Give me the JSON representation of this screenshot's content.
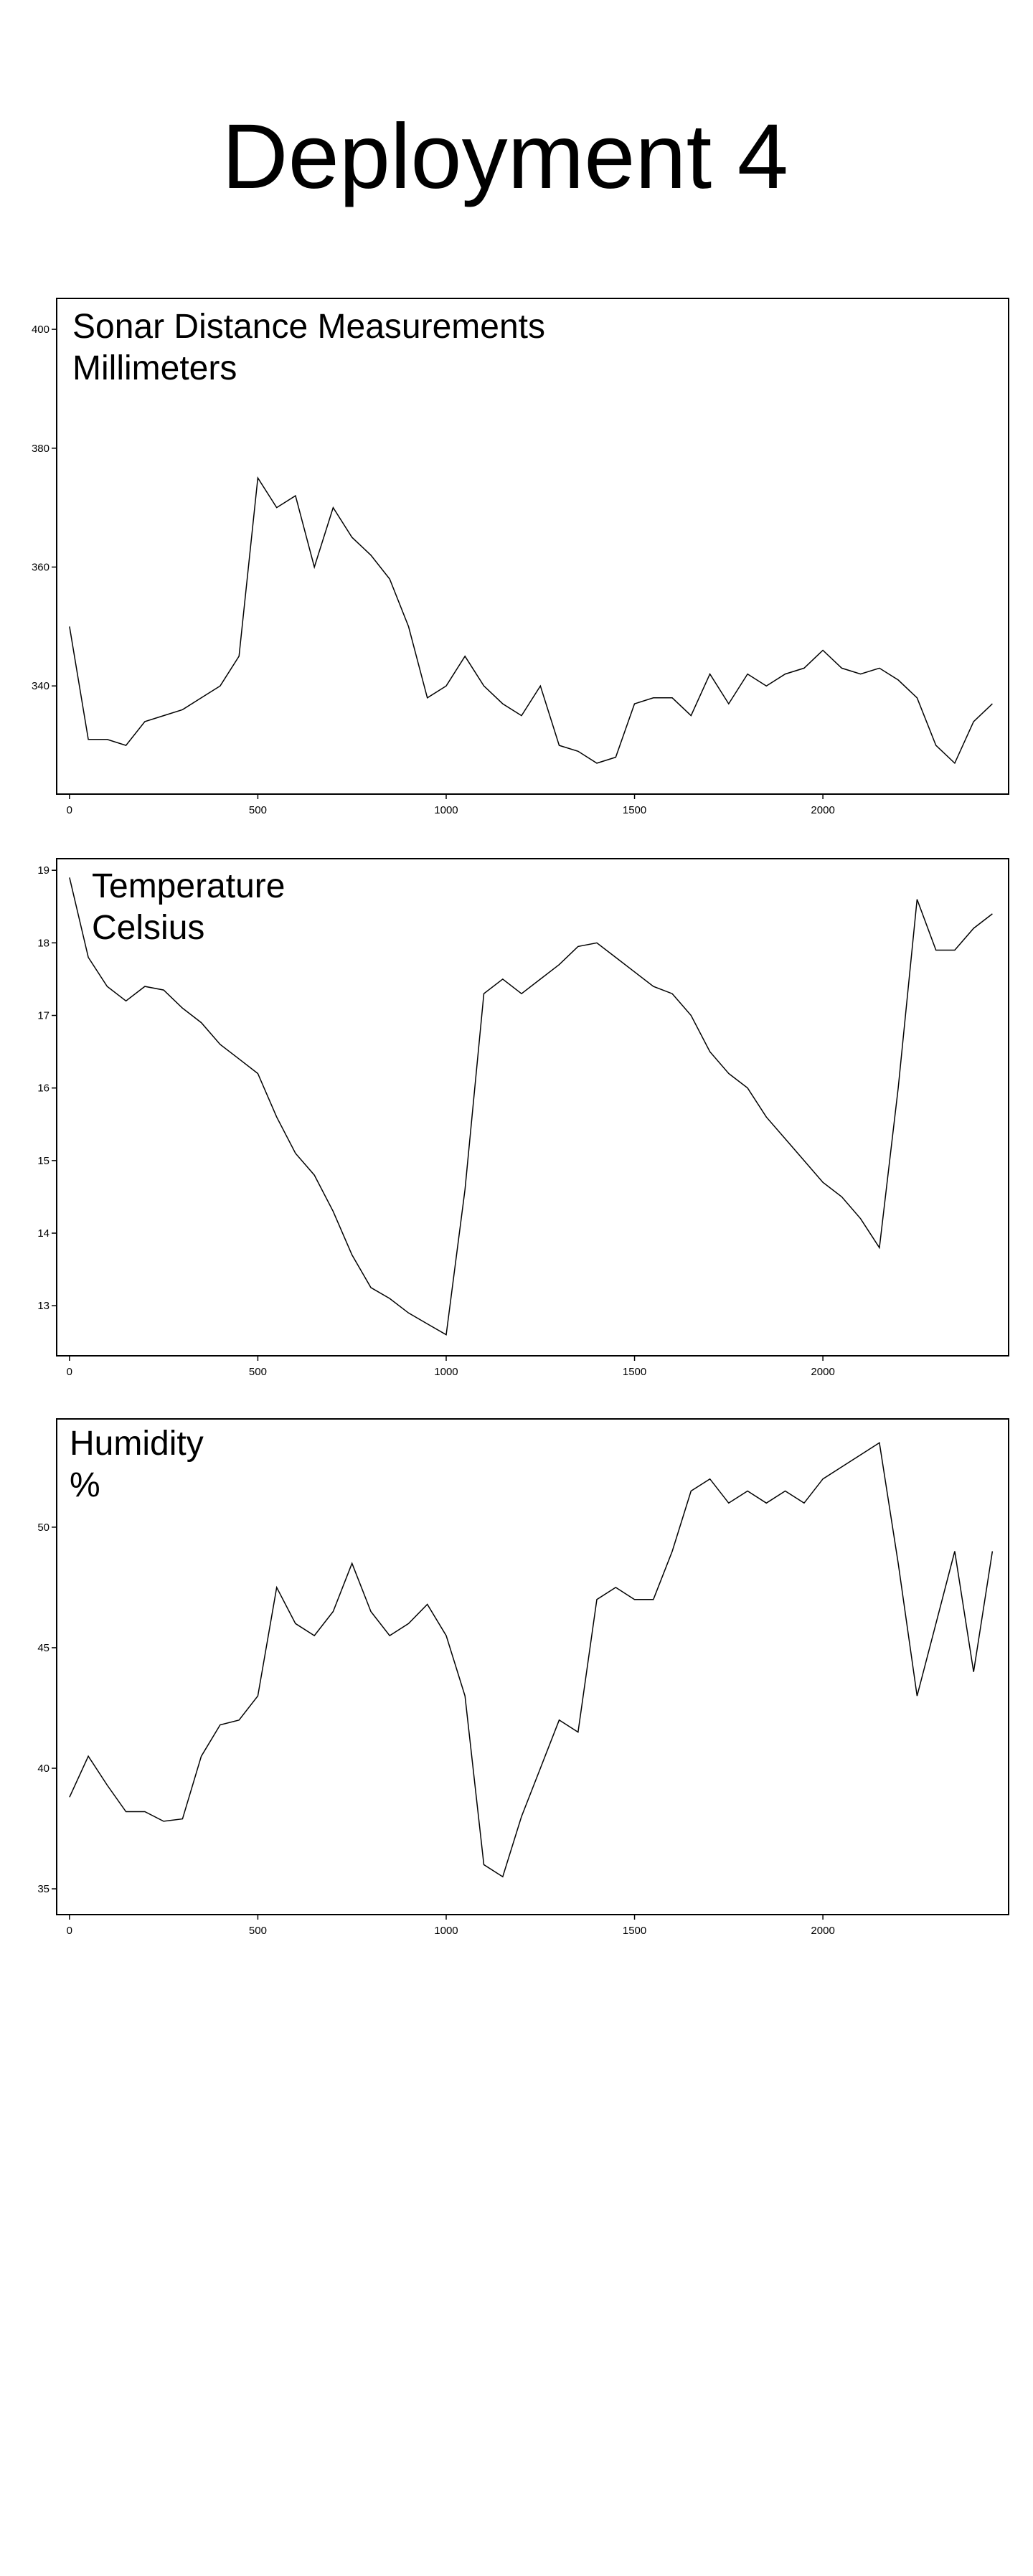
{
  "title": "Deployment 4",
  "chart_data": [
    {
      "type": "line",
      "title": "Sonar Distance Measurements",
      "subtitle": "Millimeters",
      "color": "#000000",
      "x": [
        0,
        50,
        100,
        150,
        200,
        250,
        300,
        350,
        400,
        450,
        500,
        550,
        600,
        650,
        700,
        750,
        800,
        850,
        900,
        950,
        1000,
        1050,
        1100,
        1150,
        1200,
        1250,
        1300,
        1350,
        1400,
        1450,
        1500,
        1550,
        1600,
        1650,
        1700,
        1750,
        1800,
        1850,
        1900,
        1950,
        2000,
        2050,
        2100,
        2150,
        2200,
        2250,
        2300,
        2350,
        2400,
        2450
      ],
      "values": [
        350,
        331,
        331,
        330,
        334,
        335,
        336,
        338,
        340,
        345,
        375,
        370,
        372,
        360,
        370,
        365,
        362,
        358,
        350,
        338,
        340,
        345,
        340,
        337,
        335,
        340,
        330,
        329,
        327,
        328,
        337,
        338,
        338,
        335,
        342,
        337,
        342,
        340,
        342,
        343,
        346,
        343,
        342,
        343,
        341,
        338,
        330,
        327,
        334,
        337
      ],
      "xlim": [
        -34,
        2493
      ],
      "ylim": [
        321.8,
        405.2
      ],
      "xticks": [
        0,
        500,
        1000,
        1500,
        2000
      ],
      "yticks": [
        340,
        360,
        380,
        400
      ]
    },
    {
      "type": "line",
      "title": "Temperature",
      "subtitle": "Celsius",
      "color": "#000000",
      "x": [
        0,
        50,
        100,
        150,
        200,
        250,
        300,
        350,
        400,
        450,
        500,
        550,
        600,
        650,
        700,
        750,
        800,
        850,
        900,
        950,
        1000,
        1050,
        1100,
        1150,
        1200,
        1250,
        1300,
        1350,
        1400,
        1450,
        1500,
        1550,
        1600,
        1650,
        1700,
        1750,
        1800,
        1850,
        1900,
        1950,
        2000,
        2050,
        2100,
        2150,
        2200,
        2250,
        2300,
        2350,
        2400,
        2450
      ],
      "values": [
        18.9,
        17.8,
        17.4,
        17.2,
        17.4,
        17.35,
        17.1,
        16.9,
        16.6,
        16.4,
        16.2,
        15.6,
        15.1,
        14.8,
        14.3,
        13.7,
        13.25,
        13.1,
        12.9,
        12.75,
        12.6,
        14.6,
        17.3,
        17.5,
        17.3,
        17.5,
        17.7,
        17.95,
        18.0,
        17.8,
        17.6,
        17.4,
        17.3,
        17.0,
        16.5,
        16.2,
        16.0,
        15.6,
        15.3,
        15.0,
        14.7,
        14.5,
        14.2,
        13.8,
        16.0,
        18.6,
        17.9,
        17.9,
        18.2,
        18.4
      ],
      "xlim": [
        -34,
        2493
      ],
      "ylim": [
        12.31,
        19.16
      ],
      "xticks": [
        0,
        500,
        1000,
        1500,
        2000
      ],
      "yticks": [
        13,
        14,
        15,
        16,
        17,
        18,
        19
      ]
    },
    {
      "type": "line",
      "title": "Humidity",
      "subtitle": "%",
      "color": "#000000",
      "x": [
        0,
        50,
        100,
        150,
        200,
        250,
        300,
        350,
        400,
        450,
        500,
        550,
        600,
        650,
        700,
        750,
        800,
        850,
        900,
        950,
        1000,
        1050,
        1100,
        1150,
        1200,
        1250,
        1300,
        1350,
        1400,
        1450,
        1500,
        1550,
        1600,
        1650,
        1700,
        1750,
        1800,
        1850,
        1900,
        1950,
        2000,
        2050,
        2100,
        2150,
        2200,
        2250,
        2300,
        2350,
        2400,
        2450
      ],
      "values": [
        38.8,
        40.5,
        39.3,
        38.2,
        38.2,
        37.8,
        37.9,
        40.5,
        41.8,
        42.0,
        43.0,
        47.5,
        46.0,
        45.5,
        46.5,
        48.5,
        46.5,
        45.5,
        46.0,
        46.8,
        45.5,
        43.0,
        36.0,
        35.5,
        38.0,
        40.0,
        42.0,
        41.5,
        47.0,
        47.5,
        47.0,
        47.0,
        49.0,
        51.5,
        52.0,
        51.0,
        51.5,
        51.0,
        51.5,
        51.0,
        52.0,
        52.5,
        53.0,
        53.5,
        48.5,
        43.0,
        46.0,
        49.0,
        44.0,
        49.0
      ],
      "xlim": [
        -34,
        2493
      ],
      "ylim": [
        33.93,
        54.49
      ],
      "xticks": [
        0,
        500,
        1000,
        1500,
        2000
      ],
      "yticks": [
        35,
        40,
        45,
        50
      ]
    }
  ]
}
